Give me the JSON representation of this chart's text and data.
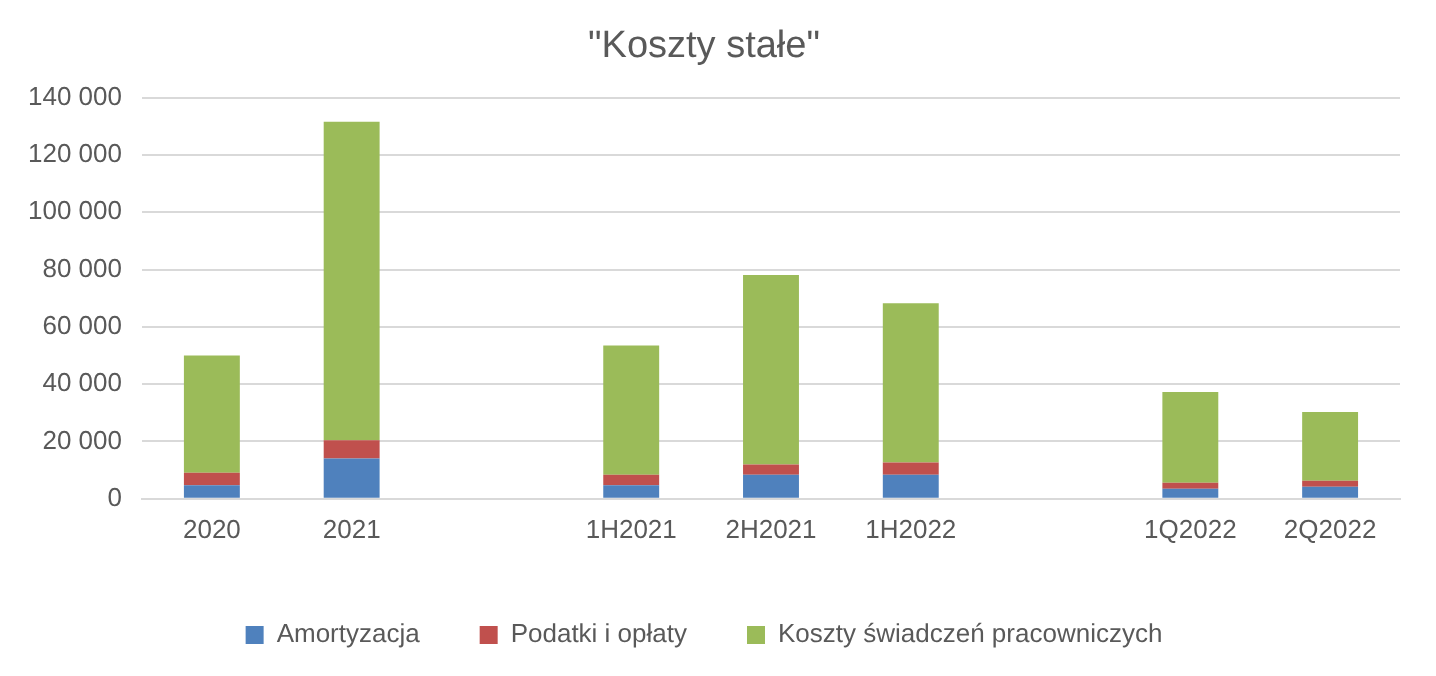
{
  "chart_data": {
    "type": "bar",
    "title": "\"Koszty stałe\"",
    "stacked": true,
    "grid": "y",
    "legend": "bottom",
    "categories": [
      "2020",
      "2021",
      null,
      "1H2021",
      "2H2021",
      "1H2022",
      null,
      "1Q2022",
      "2Q2022"
    ],
    "ylim": [
      0,
      140000
    ],
    "yticks": [
      0,
      {
        "value": 20000,
        "label": "20 000"
      },
      {
        "value": 40000,
        "label": "40 000"
      },
      {
        "value": 60000,
        "label": "60 000"
      },
      {
        "value": 80000,
        "label": "80 000"
      },
      {
        "value": 100000,
        "label": "100 000"
      },
      {
        "value": 120000,
        "label": "120 000"
      },
      {
        "value": 140000,
        "label": "140 000"
      }
    ],
    "series": [
      {
        "name": "Amortyzacja",
        "color": "#4f81bd",
        "values": [
          4700,
          14100,
          null,
          4700,
          8400,
          8400,
          null,
          3500,
          4200
        ]
      },
      {
        "name": "Podatki i opłaty",
        "color": "#c0504d",
        "values": [
          4400,
          6300,
          null,
          3700,
          3600,
          4300,
          null,
          2100,
          2100
        ]
      },
      {
        "name": "Koszty świadczeń pracowniczych",
        "color": "#9bbb59",
        "values": [
          40900,
          111200,
          null,
          45100,
          66100,
          55500,
          null,
          31700,
          24000
        ]
      }
    ]
  }
}
